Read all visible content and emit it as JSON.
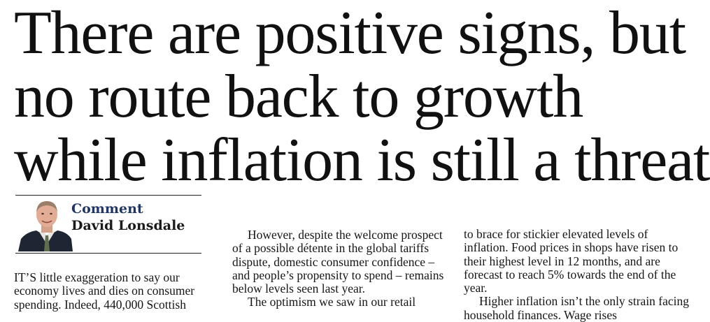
{
  "headline": {
    "line1": "There are positive signs, but",
    "line2": "no route back to growth",
    "line3": "while inflation is still a threat"
  },
  "byline": {
    "tag": "Comment",
    "author": "David Lonsdale"
  },
  "columns": {
    "col1": {
      "p1": "IT’S little exaggeration to say our economy lives and dies on consumer spending. Indeed, 440,000 Scottish"
    },
    "col2": {
      "p1": "However, despite the welcome prospect of a possible détente in the global tariffs dispute, domestic consumer confidence – and people’s propensity to spend – remains below levels seen last year.",
      "p2": "The optimism we saw in our retail"
    },
    "col3": {
      "p1": "to brace for stickier elevated levels of inflation. Food prices in shops have risen to their highest level in 12 months, and are forecast to reach 5% towards the end of the year.",
      "p2": "Higher inflation isn’t the only strain facing household finances. Wage rises"
    }
  }
}
